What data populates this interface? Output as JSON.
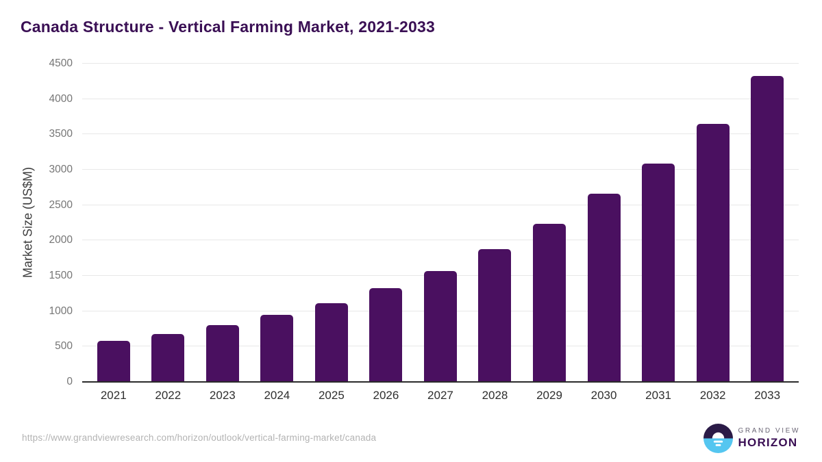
{
  "page": {
    "title": "Canada Structure - Vertical Farming Market, 2021-2033"
  },
  "chart_data": {
    "type": "bar",
    "title": "Canada Structure - Vertical Farming Market, 2021-2033",
    "xlabel": "",
    "ylabel": "Market Size (US$M)",
    "categories": [
      "2021",
      "2022",
      "2023",
      "2024",
      "2025",
      "2026",
      "2027",
      "2028",
      "2029",
      "2030",
      "2031",
      "2032",
      "2033"
    ],
    "values": [
      580,
      680,
      800,
      945,
      1115,
      1330,
      1570,
      1875,
      2235,
      2665,
      3085,
      3650,
      4330
    ],
    "ylim": [
      0,
      4500
    ],
    "yticks": [
      0,
      500,
      1000,
      1500,
      2000,
      2500,
      3000,
      3500,
      4000,
      4500
    ],
    "grid": "horizontal",
    "legend": "none",
    "bar_color": "#4a1060"
  },
  "footer": {
    "source_url": "https://www.grandviewresearch.com/horizon/outlook/vertical-farming-market/canada",
    "logo": {
      "line1": "GRAND VIEW",
      "line2": "HORIZON"
    }
  },
  "colors": {
    "title_text": "#3a0f54",
    "bar_fill": "#4a1060",
    "gridline": "#e8e8e8",
    "axis_line": "#2a2a2a",
    "y_tick_text": "#757575",
    "x_tick_text": "#2e2e2e",
    "url_text": "#b3b3b3",
    "logo_dark": "#2b1b47",
    "logo_blue": "#55c6f0"
  }
}
